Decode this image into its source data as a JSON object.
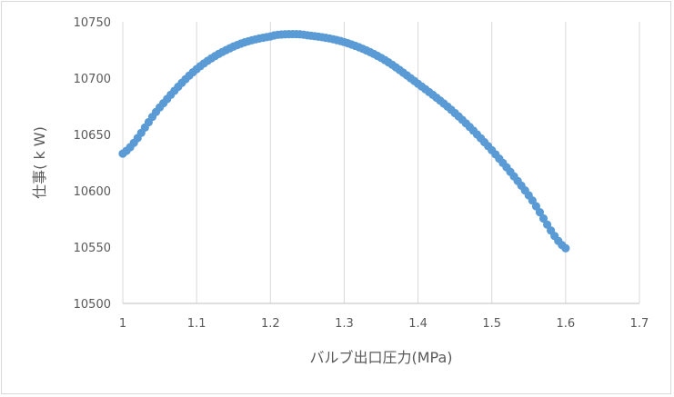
{
  "chart_data": {
    "type": "scatter",
    "title": "",
    "xlabel": "バルブ出口圧力(MPa)",
    "ylabel": "仕事( k W)",
    "xlim": [
      1,
      1.7
    ],
    "ylim": [
      10500,
      10750
    ],
    "x_ticks": [
      "1",
      "1.1",
      "1.2",
      "1.3",
      "1.4",
      "1.5",
      "1.6",
      "1.7"
    ],
    "y_ticks": [
      "10500",
      "10550",
      "10600",
      "10650",
      "10700",
      "10750"
    ],
    "grid": "vertical",
    "legend": "none",
    "marker_color": "#5b9bd5",
    "series": [
      {
        "x_start": 1.0,
        "x_end": 1.6,
        "x_step": 0.005,
        "curve_points": [
          [
            1.0,
            10633
          ],
          [
            1.05,
            10674
          ],
          [
            1.1,
            10708
          ],
          [
            1.15,
            10728
          ],
          [
            1.2,
            10737
          ],
          [
            1.225,
            10739
          ],
          [
            1.25,
            10738
          ],
          [
            1.3,
            10732
          ],
          [
            1.35,
            10718
          ],
          [
            1.4,
            10695
          ],
          [
            1.45,
            10669
          ],
          [
            1.5,
            10636
          ],
          [
            1.55,
            10596
          ],
          [
            1.6,
            10549
          ]
        ]
      }
    ]
  }
}
